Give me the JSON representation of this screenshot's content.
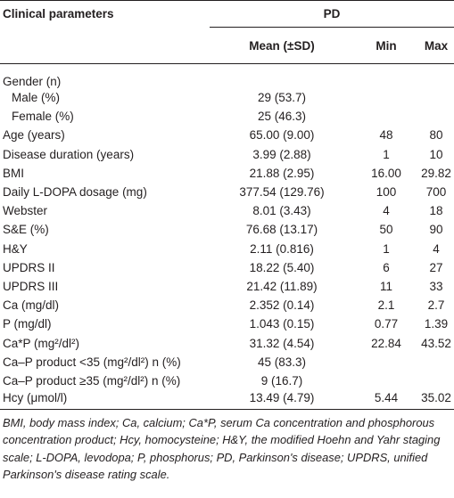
{
  "table": {
    "columns": {
      "label": "Clinical parameters",
      "group": "PD",
      "sub": [
        "Mean (±SD)",
        "Min",
        "Max"
      ]
    },
    "rows": [
      [
        "Gender (n)",
        null,
        null,
        null
      ],
      [
        "Male (%)",
        "29 (53.7)",
        null,
        null
      ],
      [
        "Female (%)",
        "25 (46.3)",
        null,
        null
      ],
      [
        "Age (years)",
        "65.00 (9.00)",
        "48",
        "80"
      ],
      [
        "Disease duration (years)",
        "3.99 (2.88)",
        "1",
        "10"
      ],
      [
        "BMI",
        "21.88 (2.95)",
        "16.00",
        "29.82"
      ],
      [
        "Daily L-DOPA dosage (mg)",
        "377.54 (129.76)",
        "100",
        "700"
      ],
      [
        "Webster",
        "8.01 (3.43)",
        "4",
        "18"
      ],
      [
        "S&E (%)",
        "76.68 (13.17)",
        "50",
        "90"
      ],
      [
        "H&Y",
        "2.11 (0.816)",
        "1",
        "4"
      ],
      [
        "UPDRS II",
        "18.22 (5.40)",
        "6",
        "27"
      ],
      [
        "UPDRS III",
        "21.42 (11.89)",
        "11",
        "33"
      ],
      [
        "Ca (mg/dl)",
        "2.352 (0.14)",
        "2.1",
        "2.7"
      ],
      [
        "P (mg/dl)",
        "1.043 (0.15)",
        "0.77",
        "1.39"
      ],
      [
        "Ca*P (mg²/dl²)",
        "31.32 (4.54)",
        "22.84",
        "43.52"
      ],
      [
        "Ca–P product <35 (mg²/dl²) n (%)",
        "45 (83.3)",
        null,
        null
      ],
      [
        "Ca–P product ≥35 (mg²/dl²) n (%)",
        "9 (16.7)",
        null,
        null
      ],
      [
        "Hcy (μmol/l)",
        "13.49 (4.79)",
        "5.44",
        "35.02"
      ]
    ],
    "footnote": "BMI, body mass index; Ca, calcium; Ca*P, serum Ca concentration and phosphorous concentration product; Hcy, homocysteine; H&Y, the modified Hoehn and Yahr staging scale; L-DOPA, levodopa; P, phosphorus; PD, Parkinson's disease; UPDRS, unified Parkinson's disease rating scale."
  }
}
